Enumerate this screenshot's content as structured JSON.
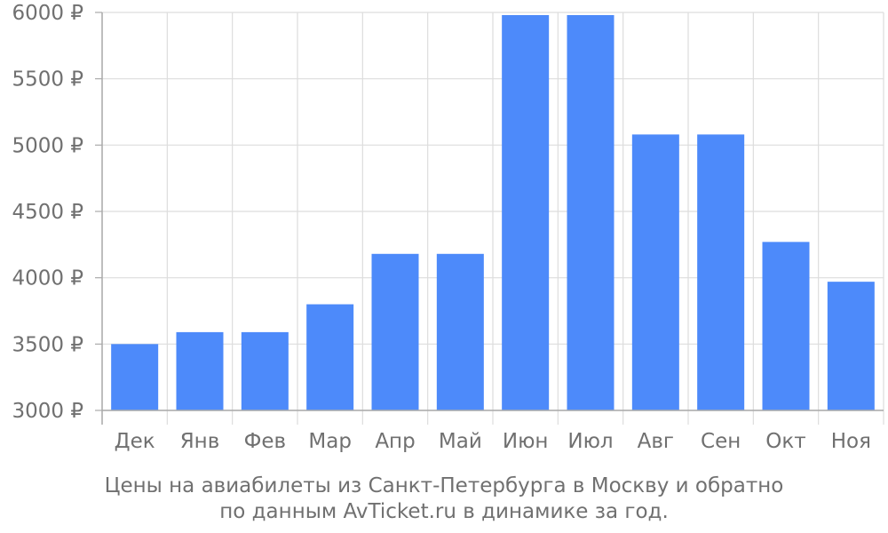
{
  "chart_data": {
    "type": "bar",
    "categories": [
      "Дек",
      "Янв",
      "Фев",
      "Мар",
      "Апр",
      "Май",
      "Июн",
      "Июл",
      "Авг",
      "Сен",
      "Окт",
      "Ноя"
    ],
    "values": [
      3500,
      3590,
      3590,
      3800,
      4180,
      4180,
      5980,
      5980,
      5080,
      5080,
      4270,
      3970
    ],
    "y_ticks": [
      "3000 ₽",
      "3500 ₽",
      "4000 ₽",
      "4500 ₽",
      "5000 ₽",
      "5500 ₽",
      "6000 ₽"
    ],
    "y_tick_values": [
      3000,
      3500,
      4000,
      4500,
      5000,
      5500,
      6000
    ],
    "ylim": [
      3000,
      6000
    ],
    "grid": true,
    "bar_color": "#4d8afa",
    "grid_color": "#dddddd",
    "axis_color": "#aaaaaa",
    "text_color": "#707070",
    "caption_lines": [
      "Цены на авиабилеты из Санкт-Петербурга в Москву и обратно",
      "по данным AvTicket.ru в динамике за год."
    ]
  }
}
